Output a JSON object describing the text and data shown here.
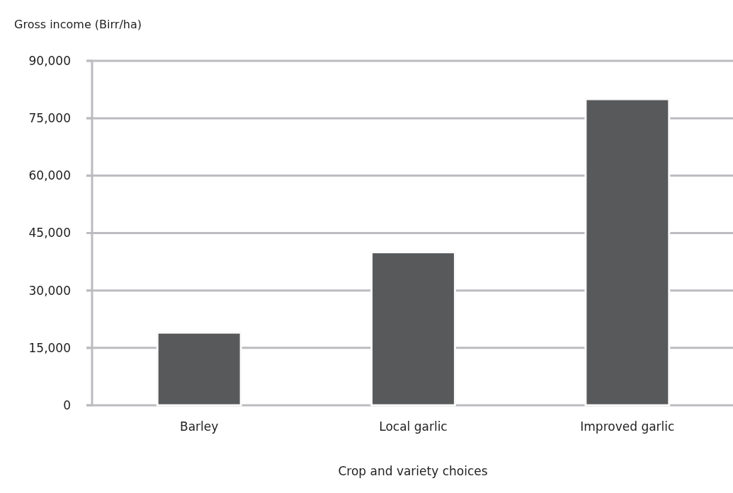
{
  "chart_data": {
    "type": "bar",
    "ylabel": "Gross income (Birr/ha)",
    "xlabel": "Crop and variety choices",
    "categories": [
      "Barley",
      "Local garlic",
      "Improved garlic"
    ],
    "values": [
      19000,
      40000,
      80000
    ],
    "color": "#58595b",
    "ylim": [
      0,
      90000
    ],
    "yticks": [
      {
        "value": 0,
        "label": "0"
      },
      {
        "value": 15000,
        "label": "15,000"
      },
      {
        "value": 30000,
        "label": "30,000"
      },
      {
        "value": 45000,
        "label": "45,000"
      },
      {
        "value": 60000,
        "label": "60,000"
      },
      {
        "value": 75000,
        "label": "75,000"
      },
      {
        "value": 90000,
        "label": "90,000"
      }
    ],
    "grid": "y"
  }
}
